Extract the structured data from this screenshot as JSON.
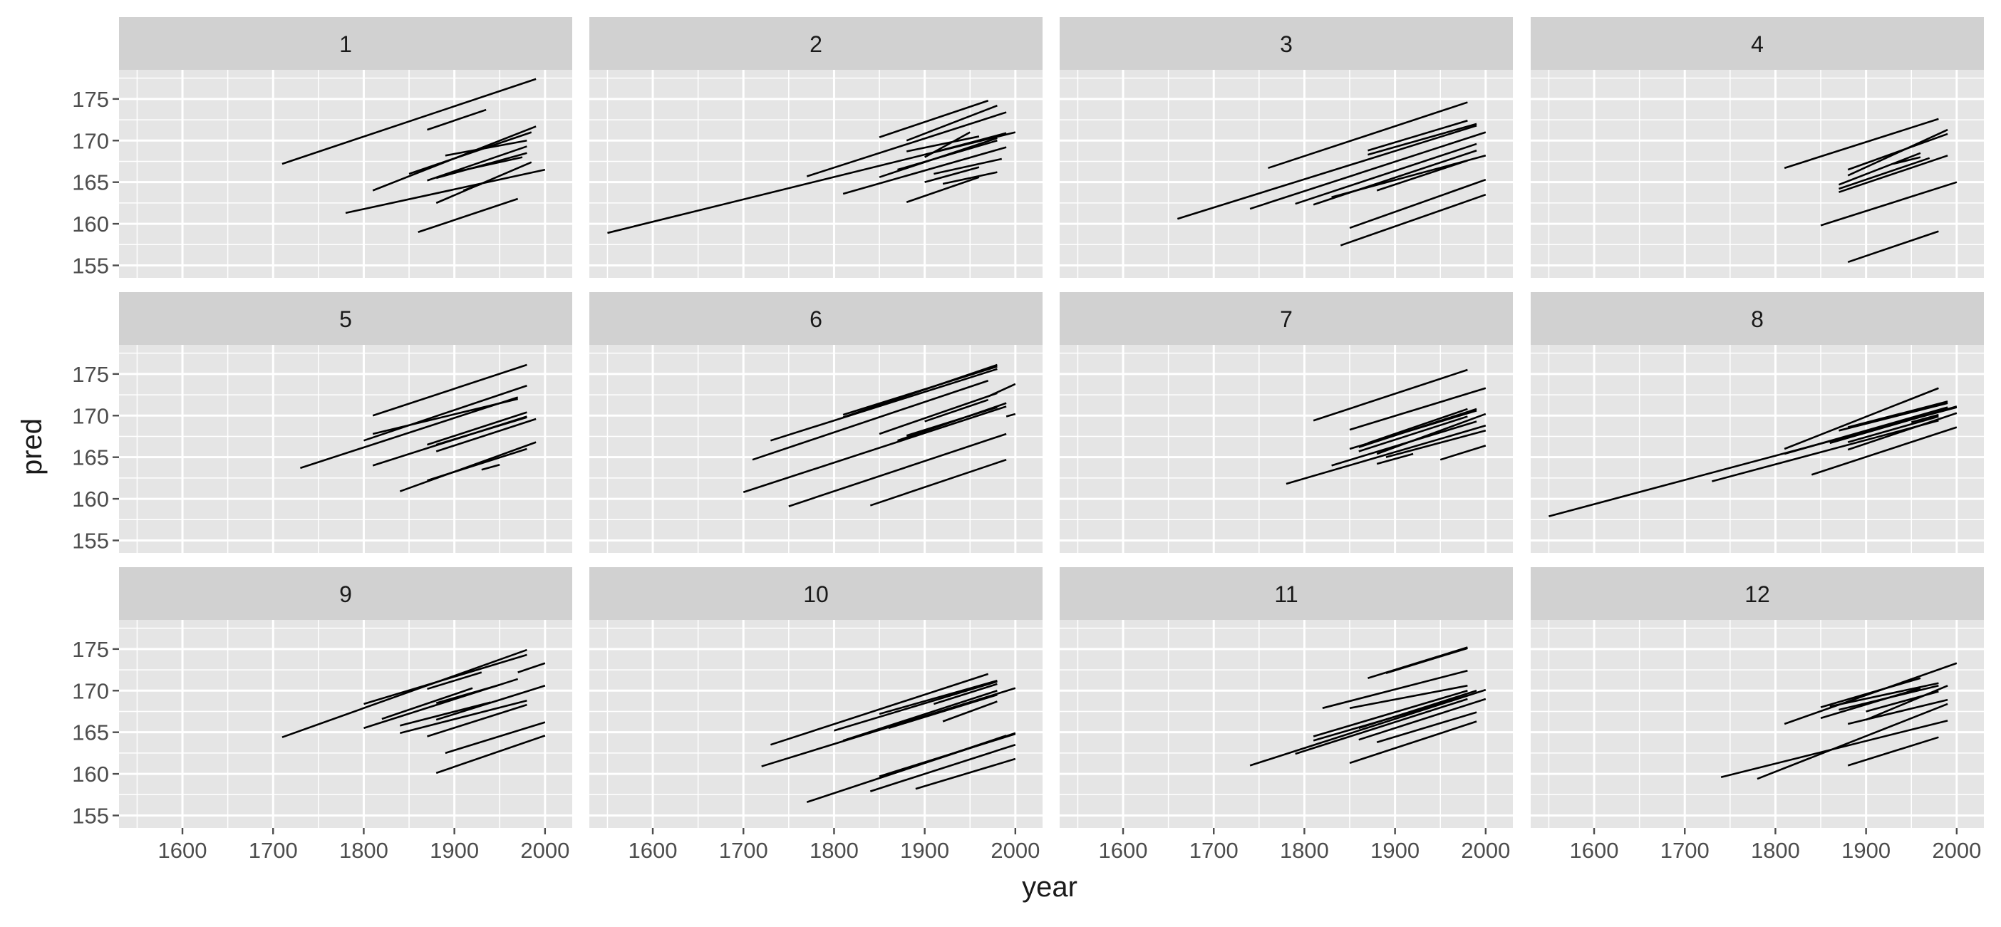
{
  "chart_data": {
    "type": "line",
    "facet_layout": {
      "rows": 3,
      "cols": 4,
      "shared_axes": true
    },
    "xlabel": "year",
    "ylabel": "pred",
    "xlim": [
      1530,
      2030
    ],
    "ylim": [
      153.5,
      178.5
    ],
    "x_ticks": [
      1600,
      1700,
      1800,
      1900,
      2000
    ],
    "y_ticks": [
      155,
      160,
      165,
      170,
      175
    ],
    "grid": true,
    "legend": "none",
    "colors": {
      "panel": "#e5e5e5",
      "strip": "#d1d1d1",
      "grid": "#ffffff",
      "line": "#000000",
      "text": "#1a1a1a",
      "tick_text": "#4d4d4d"
    },
    "facets": [
      {
        "label": "1",
        "segments": [
          [
            1710,
            167.2,
            1990,
            177.4
          ],
          [
            1870,
            171.3,
            1935,
            173.7
          ],
          [
            1810,
            164.0,
            1990,
            171.7
          ],
          [
            1850,
            166.0,
            1985,
            171.0
          ],
          [
            1890,
            168.2,
            1980,
            170.0
          ],
          [
            1870,
            165.2,
            1980,
            169.3
          ],
          [
            1880,
            165.5,
            1980,
            168.5
          ],
          [
            1900,
            166.2,
            1975,
            168.0
          ],
          [
            1880,
            162.5,
            1985,
            167.4
          ],
          [
            1780,
            161.3,
            2000,
            166.5
          ],
          [
            1910,
            164.0,
            1930,
            164.8
          ],
          [
            1860,
            159.0,
            1970,
            163.0
          ]
        ]
      },
      {
        "label": "2",
        "segments": [
          [
            1550,
            158.9,
            2000,
            171.0
          ],
          [
            1850,
            170.4,
            1970,
            174.8
          ],
          [
            1880,
            170.0,
            1980,
            174.2
          ],
          [
            1770,
            165.7,
            1990,
            173.4
          ],
          [
            1900,
            168.0,
            1950,
            171.0
          ],
          [
            1880,
            168.7,
            1960,
            170.5
          ],
          [
            1900,
            168.3,
            1990,
            170.9
          ],
          [
            1850,
            165.6,
            1980,
            170.3
          ],
          [
            1870,
            166.5,
            1980,
            170.0
          ],
          [
            1810,
            163.6,
            1990,
            169.2
          ],
          [
            1910,
            166.0,
            1985,
            167.8
          ],
          [
            1900,
            165.0,
            1960,
            166.8
          ],
          [
            1880,
            162.6,
            1960,
            165.6
          ],
          [
            1920,
            164.8,
            1980,
            166.2
          ]
        ]
      },
      {
        "label": "3",
        "segments": [
          [
            1760,
            166.7,
            1980,
            174.6
          ],
          [
            1870,
            168.8,
            1980,
            172.4
          ],
          [
            1870,
            168.3,
            1990,
            172.0
          ],
          [
            1660,
            160.6,
            1990,
            171.8
          ],
          [
            1740,
            161.8,
            2000,
            171.0
          ],
          [
            1790,
            162.4,
            1990,
            169.6
          ],
          [
            1810,
            162.3,
            1990,
            168.8
          ],
          [
            1830,
            163.2,
            2000,
            168.2
          ],
          [
            1880,
            164.0,
            1980,
            167.6
          ],
          [
            1850,
            159.5,
            2000,
            165.3
          ],
          [
            1840,
            157.4,
            2000,
            163.5
          ]
        ]
      },
      {
        "label": "4",
        "segments": [
          [
            1810,
            166.7,
            1980,
            172.6
          ],
          [
            1880,
            166.5,
            1990,
            170.8
          ],
          [
            1880,
            165.8,
            1990,
            171.3
          ],
          [
            1870,
            164.7,
            1960,
            168.5
          ],
          [
            1870,
            164.2,
            1970,
            167.9
          ],
          [
            1870,
            163.8,
            1990,
            168.2
          ],
          [
            1930,
            167.2,
            1960,
            168.0
          ],
          [
            1850,
            159.8,
            2000,
            165.0
          ],
          [
            1880,
            155.4,
            1980,
            159.1
          ]
        ]
      },
      {
        "label": "5",
        "segments": [
          [
            1810,
            170.0,
            1980,
            176.1
          ],
          [
            1810,
            167.8,
            1970,
            172.0
          ],
          [
            1800,
            167.0,
            1980,
            173.6
          ],
          [
            1730,
            163.7,
            1970,
            172.2
          ],
          [
            1870,
            166.5,
            1980,
            170.4
          ],
          [
            1880,
            166.5,
            1980,
            169.8
          ],
          [
            1880,
            165.7,
            1990,
            169.6
          ],
          [
            1810,
            164.0,
            1980,
            169.9
          ],
          [
            1840,
            160.9,
            1990,
            166.8
          ],
          [
            1870,
            162.2,
            1980,
            166.0
          ],
          [
            1930,
            163.5,
            1950,
            164.1
          ]
        ]
      },
      {
        "label": "6",
        "segments": [
          [
            1810,
            169.8,
            1980,
            176.1
          ],
          [
            1810,
            170.1,
            1980,
            175.9
          ],
          [
            1730,
            167.0,
            1980,
            175.6
          ],
          [
            1710,
            164.7,
            1970,
            174.2
          ],
          [
            1970,
            172.3,
            2000,
            173.8
          ],
          [
            1850,
            167.8,
            1980,
            172.7
          ],
          [
            1900,
            169.3,
            1970,
            171.9
          ],
          [
            1870,
            167.0,
            1990,
            171.5
          ],
          [
            1880,
            167.6,
            1980,
            171.0
          ],
          [
            1700,
            160.8,
            1990,
            171.1
          ],
          [
            1990,
            169.9,
            2000,
            170.2
          ],
          [
            1750,
            159.1,
            1990,
            167.8
          ],
          [
            1840,
            159.2,
            1990,
            164.7
          ]
        ]
      },
      {
        "label": "7",
        "segments": [
          [
            1810,
            169.4,
            1980,
            175.5
          ],
          [
            1850,
            168.3,
            2000,
            173.3
          ],
          [
            1850,
            166.0,
            1990,
            170.6
          ],
          [
            1870,
            166.7,
            1980,
            170.8
          ],
          [
            1860,
            166.2,
            1990,
            170.8
          ],
          [
            1860,
            165.7,
            1980,
            169.9
          ],
          [
            1880,
            165.4,
            2000,
            170.2
          ],
          [
            1830,
            164.0,
            1990,
            169.3
          ],
          [
            1780,
            161.8,
            2000,
            168.8
          ],
          [
            1890,
            165.0,
            2000,
            168.2
          ],
          [
            1880,
            164.2,
            1920,
            165.4
          ],
          [
            1950,
            164.7,
            2000,
            166.4
          ]
        ]
      },
      {
        "label": "8",
        "segments": [
          [
            1550,
            157.9,
            2000,
            171.0
          ],
          [
            1810,
            166.0,
            1980,
            173.3
          ],
          [
            1880,
            168.6,
            1990,
            171.7
          ],
          [
            1870,
            168.2,
            1990,
            171.5
          ],
          [
            1810,
            165.4,
            1990,
            171.0
          ],
          [
            1860,
            166.7,
            2000,
            171.1
          ],
          [
            1880,
            166.8,
            1980,
            169.9
          ],
          [
            1880,
            165.9,
            2000,
            170.3
          ],
          [
            1730,
            162.1,
            1980,
            169.4
          ],
          [
            1840,
            162.9,
            2000,
            168.6
          ],
          [
            1950,
            169.2,
            1980,
            170.1
          ]
        ]
      },
      {
        "label": "9",
        "segments": [
          [
            1710,
            164.4,
            1980,
            174.9
          ],
          [
            1800,
            168.4,
            1980,
            174.3
          ],
          [
            1970,
            172.2,
            2000,
            173.3
          ],
          [
            1870,
            170.2,
            1930,
            172.2
          ],
          [
            1820,
            166.6,
            1920,
            170.3
          ],
          [
            1880,
            168.5,
            1950,
            170.7
          ],
          [
            1800,
            165.5,
            1970,
            171.4
          ],
          [
            1840,
            165.8,
            1940,
            168.6
          ],
          [
            1880,
            166.5,
            2000,
            170.6
          ],
          [
            1840,
            164.9,
            1980,
            168.8
          ],
          [
            1870,
            164.5,
            1980,
            168.3
          ],
          [
            1890,
            162.5,
            2000,
            166.2
          ],
          [
            1880,
            160.1,
            2000,
            164.6
          ]
        ]
      },
      {
        "label": "10",
        "segments": [
          [
            1730,
            163.5,
            1970,
            172.0
          ],
          [
            1910,
            168.4,
            1980,
            170.8
          ],
          [
            1850,
            167.2,
            1980,
            171.2
          ],
          [
            1800,
            165.2,
            1980,
            171.1
          ],
          [
            1810,
            164.0,
            1980,
            170.0
          ],
          [
            1860,
            165.5,
            1980,
            169.5
          ],
          [
            1720,
            160.9,
            2000,
            170.3
          ],
          [
            1920,
            166.3,
            1980,
            168.7
          ],
          [
            1850,
            159.7,
            2000,
            164.8
          ],
          [
            1850,
            159.5,
            1990,
            164.6
          ],
          [
            1770,
            156.6,
            2000,
            164.9
          ],
          [
            1840,
            157.9,
            2000,
            163.5
          ],
          [
            1890,
            158.2,
            2000,
            161.8
          ]
        ]
      },
      {
        "label": "11",
        "segments": [
          [
            1870,
            171.5,
            1980,
            175.2
          ],
          [
            1890,
            172.1,
            1980,
            175.1
          ],
          [
            1820,
            167.9,
            1980,
            172.4
          ],
          [
            1850,
            167.9,
            1980,
            170.6
          ],
          [
            1810,
            164.5,
            1980,
            170.0
          ],
          [
            1860,
            165.5,
            1990,
            170.0
          ],
          [
            1810,
            164.0,
            1980,
            169.4
          ],
          [
            1740,
            161.0,
            2000,
            170.1
          ],
          [
            1790,
            162.4,
            1980,
            169.0
          ],
          [
            1860,
            164.1,
            2000,
            169.0
          ],
          [
            1880,
            163.8,
            1990,
            167.4
          ],
          [
            1850,
            161.3,
            1990,
            166.3
          ]
        ]
      },
      {
        "label": "12",
        "segments": [
          [
            1850,
            168.0,
            1960,
            171.5
          ],
          [
            1860,
            168.1,
            1980,
            170.9
          ],
          [
            1870,
            167.7,
            1980,
            170.6
          ],
          [
            1850,
            166.7,
            1960,
            170.3
          ],
          [
            1900,
            167.5,
            1980,
            169.9
          ],
          [
            1810,
            166.0,
            2000,
            173.3
          ],
          [
            1900,
            166.5,
            1990,
            170.6
          ],
          [
            1880,
            166.0,
            1990,
            168.9
          ],
          [
            1740,
            159.6,
            1990,
            166.4
          ],
          [
            1780,
            159.4,
            1990,
            168.4
          ],
          [
            1880,
            161.0,
            1980,
            164.4
          ]
        ]
      }
    ]
  }
}
